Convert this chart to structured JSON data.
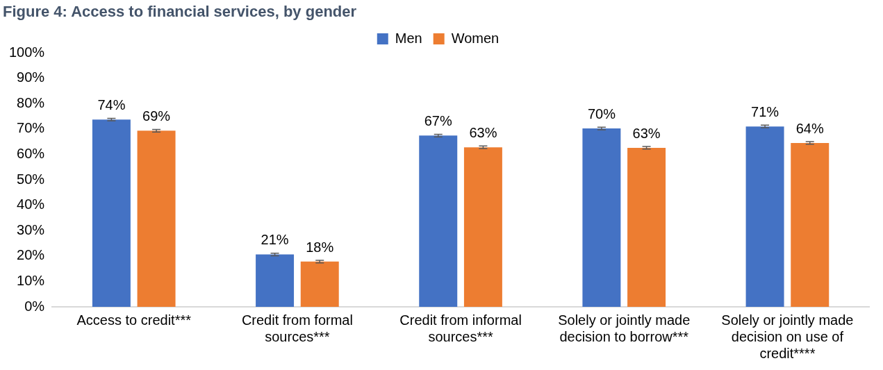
{
  "chart_data": {
    "type": "bar",
    "title": "Figure 4: Access to financial services, by gender",
    "categories": [
      "Access to credit***",
      "Credit from formal sources***",
      "Credit from informal sources***",
      "Solely or jointly made decision to borrow***",
      "Solely or jointly made decision on use of credit****"
    ],
    "series": [
      {
        "name": "Men",
        "color": "#4472c4",
        "values": [
          73.7,
          20.6,
          67.4,
          70.2,
          71.0
        ],
        "errors": [
          0.5,
          0.5,
          0.5,
          0.5,
          0.5
        ],
        "value_labels": [
          "74%",
          "21%",
          "67%",
          "70%",
          "71%"
        ]
      },
      {
        "name": "Women",
        "color": "#ed7d31",
        "values": [
          69.3,
          17.8,
          62.8,
          62.6,
          64.5
        ],
        "errors": [
          0.5,
          0.5,
          0.5,
          0.5,
          0.5
        ],
        "value_labels": [
          "69%",
          "18%",
          "63%",
          "63%",
          "64%"
        ]
      }
    ],
    "ylim": [
      0,
      100
    ],
    "yticks": [
      {
        "value": 0,
        "label": "0%"
      },
      {
        "value": 10,
        "label": "10%"
      },
      {
        "value": 20,
        "label": "20%"
      },
      {
        "value": 30,
        "label": "30%"
      },
      {
        "value": 40,
        "label": "40%"
      },
      {
        "value": 50,
        "label": "50%"
      },
      {
        "value": 60,
        "label": "60%"
      },
      {
        "value": 70,
        "label": "70%"
      },
      {
        "value": 80,
        "label": "80%"
      },
      {
        "value": 90,
        "label": "90%"
      },
      {
        "value": 100,
        "label": "100%"
      }
    ],
    "grid": false,
    "legend": "top"
  }
}
